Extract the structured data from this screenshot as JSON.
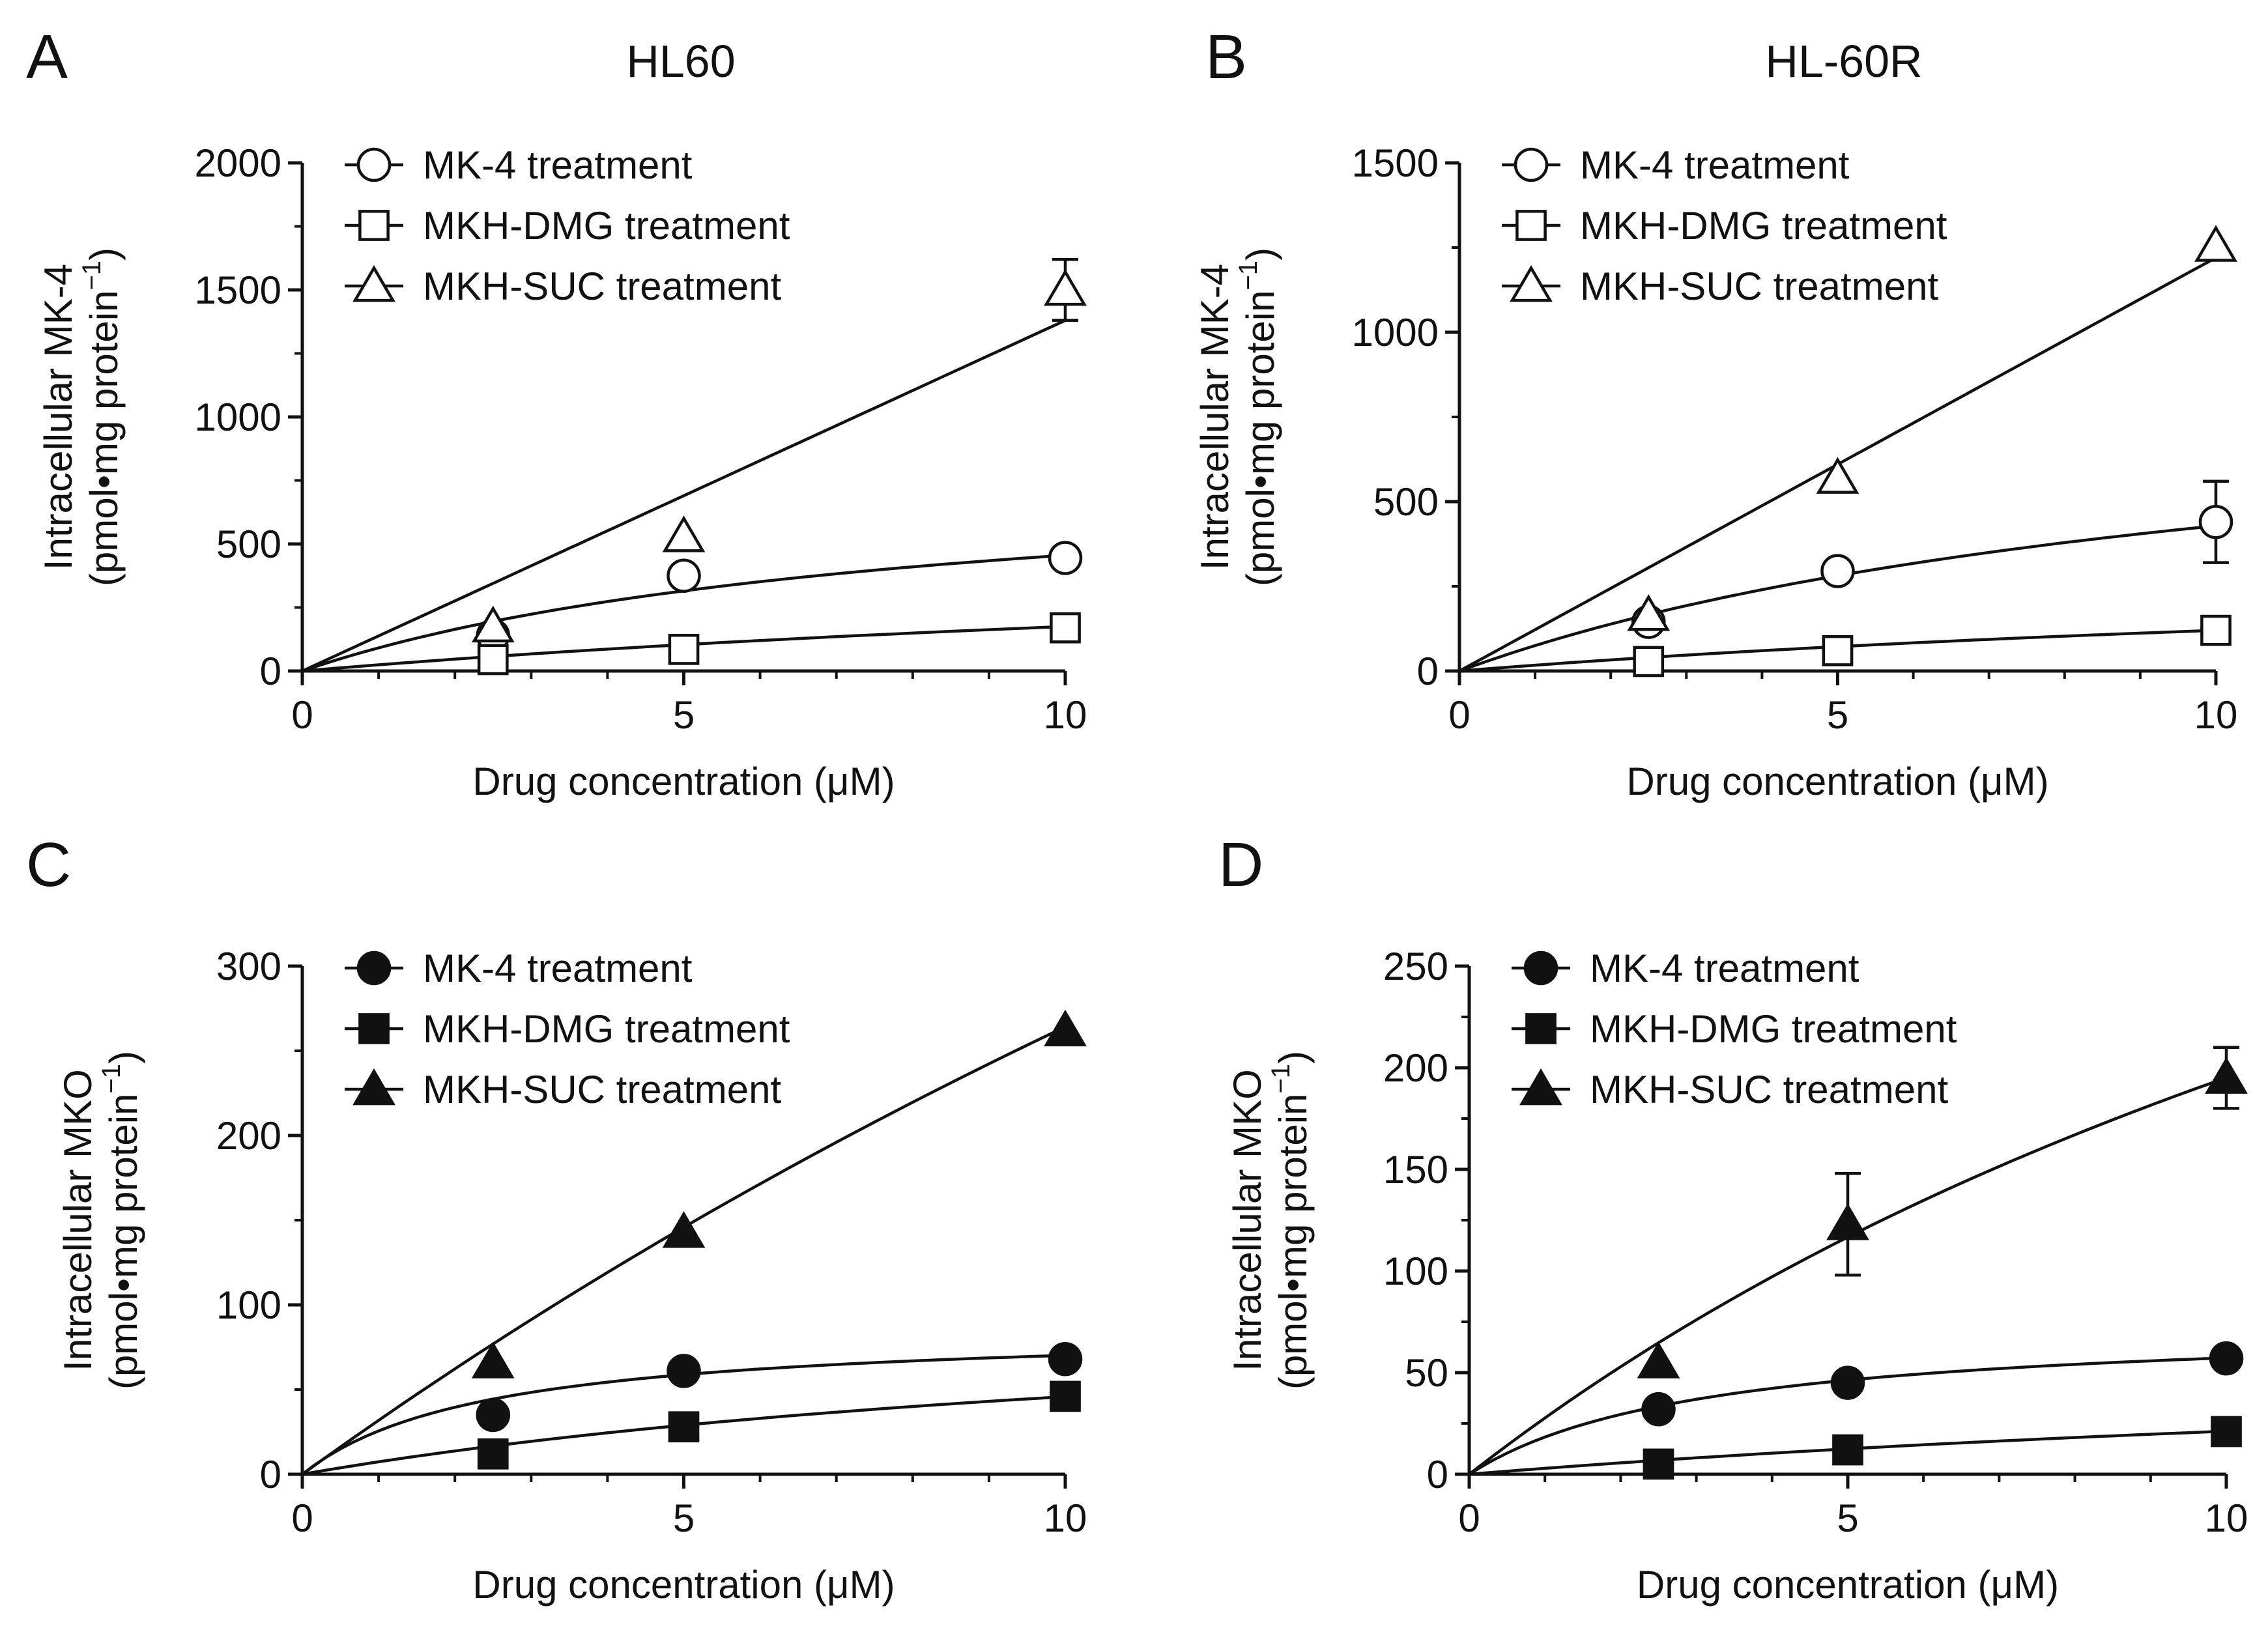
{
  "chart_data": [
    {
      "panel": "A",
      "title": "HL60",
      "type": "scatter",
      "markers": "open",
      "xlabel": "Drug concentration (μM)",
      "ylabel_line1": "Intracellular MK-4",
      "ylabel_line2": "(pmol•mg protein",
      "ylabel_sup": "−1",
      "ylabel_close": ")",
      "xlim": [
        0,
        10
      ],
      "ylim": [
        0,
        2000
      ],
      "xticks": [
        0,
        5,
        10
      ],
      "yticks": [
        0,
        500,
        1000,
        1500,
        2000
      ],
      "yminor": 250,
      "legend": "top-left",
      "series": [
        {
          "name": "MK-4 treatment",
          "marker": "circle",
          "x": [
            2.5,
            5,
            10
          ],
          "y": [
            140,
            375,
            445
          ],
          "err": [
            0,
            0,
            0
          ],
          "fit": {
            "model": "hyperbola",
            "vmax": 820,
            "km": 8
          }
        },
        {
          "name": "MKH-DMG treatment",
          "marker": "square",
          "x": [
            2.5,
            5,
            10
          ],
          "y": [
            45,
            85,
            170
          ],
          "err": [
            0,
            0,
            0
          ],
          "fit": {
            "model": "hyperbola",
            "vmax": 560,
            "km": 22
          }
        },
        {
          "name": "MKH-SUC treatment",
          "marker": "triangle",
          "x": [
            2.5,
            5,
            10
          ],
          "y": [
            175,
            530,
            1500
          ],
          "err": [
            0,
            0,
            120
          ],
          "fit": {
            "model": "linear",
            "slope": 138
          }
        }
      ]
    },
    {
      "panel": "B",
      "title": "HL-60R",
      "type": "scatter",
      "markers": "open",
      "xlabel": "Drug concentration (μM)",
      "ylabel_line1": "Intracellular MK-4",
      "ylabel_line2": "(pmol•mg protein",
      "ylabel_sup": "−1",
      "ylabel_close": ")",
      "xlim": [
        0,
        10
      ],
      "ylim": [
        0,
        1500
      ],
      "xticks": [
        0,
        5,
        10
      ],
      "yticks": [
        0,
        500,
        1000,
        1500
      ],
      "yminor": 250,
      "legend": "top-left",
      "series": [
        {
          "name": "MK-4 treatment",
          "marker": "circle",
          "x": [
            2.5,
            5,
            10
          ],
          "y": [
            145,
            295,
            440
          ],
          "err": [
            0,
            0,
            120
          ],
          "fit": {
            "model": "hyperbola",
            "vmax": 900,
            "km": 11
          }
        },
        {
          "name": "MKH-DMG treatment",
          "marker": "square",
          "x": [
            2.5,
            5,
            10
          ],
          "y": [
            28,
            60,
            120
          ],
          "err": [
            0,
            0,
            0
          ],
          "fit": {
            "model": "hyperbola",
            "vmax": 360,
            "km": 20
          }
        },
        {
          "name": "MKH-SUC treatment",
          "marker": "triangle",
          "x": [
            2.5,
            5,
            10
          ],
          "y": [
            165,
            570,
            1255
          ],
          "err": [
            0,
            0,
            0
          ],
          "fit": {
            "model": "linear",
            "slope": 122
          }
        }
      ]
    },
    {
      "panel": "C",
      "title": "",
      "type": "scatter",
      "markers": "filled",
      "xlabel": "Drug concentration (μM)",
      "ylabel_line1": "Intracellular MKO",
      "ylabel_line2": "(pmol•mg protein",
      "ylabel_sup": "−1",
      "ylabel_close": ")",
      "xlim": [
        0,
        10
      ],
      "ylim": [
        0,
        300
      ],
      "xticks": [
        0,
        5,
        10
      ],
      "yticks": [
        0,
        100,
        200,
        300
      ],
      "yminor": 50,
      "legend": "top-left",
      "series": [
        {
          "name": "MK-4 treatment",
          "marker": "circle",
          "x": [
            2.5,
            5,
            10
          ],
          "y": [
            35,
            61,
            68
          ],
          "err": [
            0,
            0,
            0
          ],
          "fit": {
            "model": "hyperbola",
            "vmax": 87,
            "km": 2.4
          }
        },
        {
          "name": "MKH-DMG treatment",
          "marker": "square",
          "x": [
            2.5,
            5,
            10
          ],
          "y": [
            12,
            28,
            46
          ],
          "err": [
            0,
            0,
            0
          ],
          "fit": {
            "model": "hyperbola",
            "vmax": 110,
            "km": 14
          }
        },
        {
          "name": "MKH-SUC treatment",
          "marker": "triangle",
          "x": [
            2.5,
            5,
            10
          ],
          "y": [
            66,
            143,
            262
          ],
          "err": [
            0,
            0,
            0
          ],
          "fit": {
            "model": "hyperbola",
            "vmax": 1400,
            "km": 43
          }
        }
      ]
    },
    {
      "panel": "D",
      "title": "",
      "type": "scatter",
      "markers": "filled",
      "xlabel": "Drug concentration (μM)",
      "ylabel_line1": "Intracellular MKO",
      "ylabel_line2": "(pmol•mg protein",
      "ylabel_sup": "−1",
      "ylabel_close": ")",
      "xlim": [
        0,
        10
      ],
      "ylim": [
        0,
        250
      ],
      "xticks": [
        0,
        5,
        10
      ],
      "yticks": [
        0,
        50,
        100,
        150,
        200,
        250
      ],
      "yminor": 25,
      "legend": "top-left",
      "series": [
        {
          "name": "MK-4 treatment",
          "marker": "circle",
          "x": [
            2.5,
            5,
            10
          ],
          "y": [
            32,
            45,
            57
          ],
          "err": [
            0,
            0,
            0
          ],
          "fit": {
            "model": "hyperbola",
            "vmax": 75,
            "km": 3.1
          }
        },
        {
          "name": "MKH-DMG treatment",
          "marker": "square",
          "x": [
            2.5,
            5,
            10
          ],
          "y": [
            5,
            12,
            21
          ],
          "err": [
            0,
            0,
            0
          ],
          "fit": {
            "model": "hyperbola",
            "vmax": 70,
            "km": 23
          }
        },
        {
          "name": "MKH-SUC treatment",
          "marker": "triangle",
          "x": [
            2.5,
            5,
            10
          ],
          "y": [
            55,
            123,
            195
          ],
          "err": [
            0,
            25,
            15
          ],
          "fit": {
            "model": "hyperbola",
            "vmax": 595,
            "km": 20.5
          }
        }
      ]
    }
  ]
}
